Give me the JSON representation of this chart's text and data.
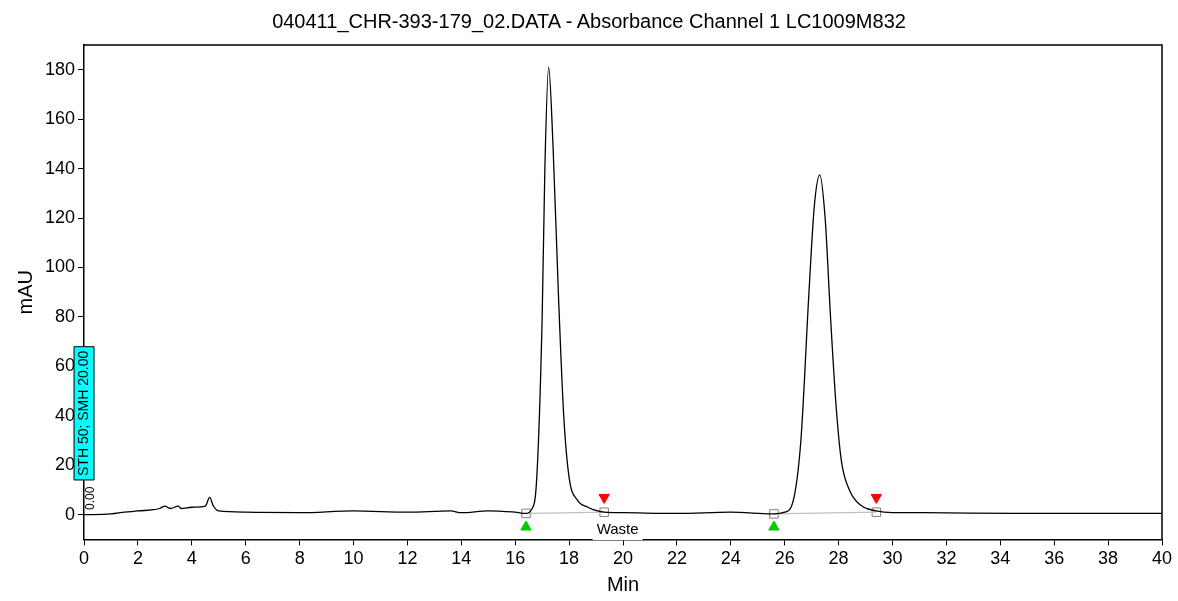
{
  "chart_data": {
    "type": "line",
    "title": "040411_CHR-393-179_02.DATA - Absorbance Channel 1 LC1009M832",
    "xlabel": "Min",
    "ylabel": "mAU",
    "xlim": [
      0,
      40
    ],
    "xticks": [
      0,
      2,
      4,
      6,
      8,
      10,
      12,
      14,
      16,
      18,
      20,
      22,
      24,
      26,
      28,
      30,
      32,
      34,
      36,
      38,
      40
    ],
    "ylim": [
      -10,
      190
    ],
    "yticks": [
      0,
      20,
      40,
      60,
      80,
      100,
      120,
      140,
      160,
      180
    ],
    "grid": false,
    "legend": false,
    "marker": "none",
    "line_style": "solid",
    "series": [
      {
        "type": "line",
        "color": "#000000",
        "x": [
          0,
          1,
          1.5,
          2,
          2.8,
          3.0,
          3.2,
          3.5,
          3.6,
          4,
          4.5,
          4.66,
          4.8,
          5.0,
          6,
          8,
          10,
          12,
          13.6,
          14,
          15,
          16,
          16.4,
          16.6,
          16.8,
          17.0,
          17.1,
          17.24,
          17.4,
          17.6,
          17.8,
          18.0,
          18.3,
          18.7,
          19.3,
          20,
          22,
          24,
          25.6,
          26.0,
          26.3,
          26.6,
          26.9,
          27.1,
          27.3,
          27.5,
          27.7,
          27.9,
          28.1,
          28.4,
          28.8,
          29.4,
          30,
          31,
          35,
          40
        ],
        "values": [
          0,
          0.3,
          1,
          1.5,
          2.5,
          3.5,
          2.5,
          3.5,
          2.5,
          3,
          3.5,
          7,
          3.5,
          1.5,
          1,
          0.8,
          1.5,
          1,
          1.5,
          0.8,
          1.5,
          1,
          0.5,
          2,
          15,
          80,
          140,
          181,
          150,
          90,
          40,
          15,
          6,
          3,
          1,
          0.8,
          0.5,
          1,
          0.3,
          1,
          5,
          30,
          90,
          125,
          137.5,
          120,
          80,
          45,
          22,
          10,
          4,
          1.5,
          0.8,
          0.8,
          0.5,
          0.5
        ]
      },
      {
        "type": "line",
        "color": "#c0c0c0",
        "x": [
          16.4,
          19.3
        ],
        "values": [
          0.5,
          1
        ]
      },
      {
        "type": "line",
        "color": "#c0c0c0",
        "x": [
          25.6,
          29.4
        ],
        "values": [
          0.3,
          1
        ]
      },
      {
        "type": "scatter",
        "color": "#808080",
        "marker": "square",
        "x": [
          16.4,
          19.3,
          25.6,
          29.4
        ],
        "values": [
          0.5,
          1,
          0.3,
          1
        ]
      },
      {
        "type": "scatter",
        "color": "#00cc00",
        "marker": "triangle",
        "x": [
          16.4,
          25.6
        ],
        "values": [
          -5,
          -5
        ]
      },
      {
        "type": "scatter",
        "color": "#ff0000",
        "marker": "triangle",
        "x": [
          19.3,
          29.4
        ],
        "values": [
          7,
          7
        ]
      }
    ],
    "annotations": [
      "Waste",
      "STH 50; SMH 20.00",
      "0.00"
    ]
  }
}
